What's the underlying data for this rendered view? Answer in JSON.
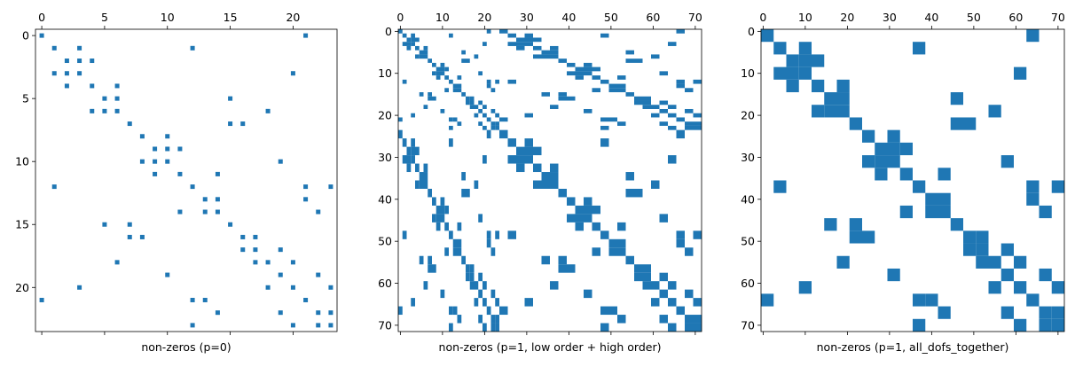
{
  "chart_data": [
    {
      "type": "spy",
      "xlabel": "non-zeros (p=0)",
      "xlim": [
        -0.5,
        23.5
      ],
      "ylim": [
        23.5,
        -0.5
      ],
      "xticks": [
        0,
        5,
        10,
        15,
        20
      ],
      "yticks": [
        0,
        5,
        10,
        15,
        20
      ],
      "series": [
        {
          "color": "#1f77b4",
          "cell_size": [
            1,
            1
          ],
          "x": [
            0,
            21,
            1,
            3,
            12,
            2,
            3,
            4,
            1,
            2,
            3,
            20,
            2,
            4,
            6,
            5,
            6,
            15,
            4,
            5,
            6,
            18,
            7,
            15,
            16,
            8,
            10,
            9,
            10,
            11,
            8,
            9,
            10,
            19,
            9,
            11,
            14,
            1,
            12,
            21,
            23,
            13,
            14,
            21,
            11,
            13,
            14,
            22,
            5,
            7,
            15,
            7,
            8,
            16,
            17,
            16,
            17,
            19,
            6,
            17,
            18,
            20,
            10,
            19,
            22,
            3,
            18,
            20,
            23,
            0,
            12,
            13,
            21,
            14,
            19,
            22,
            23,
            12,
            20,
            22,
            23
          ],
          "values": [
            0,
            0,
            1,
            1,
            1,
            2,
            2,
            2,
            3,
            3,
            3,
            3,
            4,
            4,
            4,
            5,
            5,
            5,
            6,
            6,
            6,
            6,
            7,
            7,
            7,
            8,
            8,
            9,
            9,
            9,
            10,
            10,
            10,
            10,
            11,
            11,
            11,
            12,
            12,
            12,
            12,
            13,
            13,
            13,
            14,
            14,
            14,
            14,
            15,
            15,
            15,
            16,
            16,
            16,
            16,
            17,
            17,
            17,
            18,
            18,
            18,
            18,
            19,
            19,
            19,
            20,
            20,
            20,
            20,
            21,
            21,
            21,
            21,
            22,
            22,
            22,
            22,
            23,
            23,
            23,
            23
          ]
        }
      ]
    },
    {
      "type": "spy",
      "xlabel": "non-zeros (p=1, low order + high order)",
      "xlim": [
        -0.5,
        71.5
      ],
      "ylim": [
        71.5,
        -0.5
      ],
      "xticks": [
        0,
        10,
        20,
        30,
        40,
        50,
        60,
        70
      ],
      "yticks": [
        0,
        10,
        20,
        30,
        40,
        50,
        60,
        70
      ],
      "series": [
        {
          "color": "#1f77b4",
          "cell_size": [
            1,
            1
          ],
          "x": [
            0,
            21,
            1,
            3,
            12,
            2,
            3,
            4,
            1,
            2,
            3,
            20,
            2,
            4,
            6,
            5,
            6,
            15,
            4,
            5,
            6,
            18,
            7,
            15,
            16,
            8,
            10,
            9,
            10,
            11,
            8,
            9,
            10,
            19,
            9,
            11,
            14,
            1,
            12,
            21,
            23,
            13,
            14,
            21,
            11,
            13,
            14,
            22,
            5,
            7,
            15,
            7,
            8,
            16,
            17,
            16,
            17,
            19,
            6,
            17,
            18,
            20,
            10,
            19,
            22,
            3,
            18,
            20,
            23,
            0,
            12,
            13,
            21,
            14,
            19,
            22,
            23,
            12,
            20,
            22,
            23
          ],
          "values": [
            0,
            0,
            1,
            1,
            1,
            2,
            2,
            2,
            3,
            3,
            3,
            3,
            4,
            4,
            4,
            5,
            5,
            5,
            6,
            6,
            6,
            6,
            7,
            7,
            7,
            8,
            8,
            9,
            9,
            9,
            10,
            10,
            10,
            10,
            11,
            11,
            11,
            12,
            12,
            12,
            12,
            13,
            13,
            13,
            14,
            14,
            14,
            14,
            15,
            15,
            15,
            16,
            16,
            16,
            16,
            17,
            17,
            17,
            18,
            18,
            18,
            18,
            19,
            19,
            19,
            20,
            20,
            20,
            20,
            21,
            21,
            21,
            21,
            22,
            22,
            22,
            22,
            23,
            23,
            23,
            23
          ]
        },
        {
          "color": "#1f77b4",
          "cell_size": [
            2,
            1
          ],
          "x": [
            24,
            66,
            26,
            30,
            48,
            28,
            30,
            32,
            26,
            28,
            30,
            64,
            28,
            32,
            36,
            34,
            36,
            54,
            32,
            34,
            36,
            60,
            38,
            54,
            56,
            40,
            44,
            42,
            44,
            46,
            40,
            42,
            44,
            62,
            42,
            46,
            52,
            26,
            48,
            66,
            70,
            50,
            52,
            66,
            46,
            50,
            52,
            68,
            34,
            38,
            54,
            38,
            40,
            56,
            58,
            56,
            58,
            62,
            36,
            58,
            60,
            64,
            44,
            62,
            68,
            30,
            60,
            64,
            70,
            24,
            48,
            50,
            66,
            52,
            62,
            68,
            70,
            48,
            64,
            68,
            70
          ],
          "values": [
            0,
            0,
            1,
            1,
            1,
            2,
            2,
            2,
            3,
            3,
            3,
            3,
            4,
            4,
            4,
            5,
            5,
            5,
            6,
            6,
            6,
            6,
            7,
            7,
            7,
            8,
            8,
            9,
            9,
            9,
            10,
            10,
            10,
            10,
            11,
            11,
            11,
            12,
            12,
            12,
            12,
            13,
            13,
            13,
            14,
            14,
            14,
            14,
            15,
            15,
            15,
            16,
            16,
            16,
            16,
            17,
            17,
            17,
            18,
            18,
            18,
            18,
            19,
            19,
            19,
            20,
            20,
            20,
            20,
            21,
            21,
            21,
            21,
            22,
            22,
            22,
            22,
            23,
            23,
            23,
            23
          ]
        },
        {
          "color": "#1f77b4",
          "cell_size": [
            1,
            2
          ],
          "x": [
            0,
            21,
            1,
            3,
            12,
            2,
            3,
            4,
            1,
            2,
            3,
            20,
            2,
            4,
            6,
            5,
            6,
            15,
            4,
            5,
            6,
            18,
            7,
            15,
            16,
            8,
            10,
            9,
            10,
            11,
            8,
            9,
            10,
            19,
            9,
            11,
            14,
            1,
            12,
            21,
            23,
            13,
            14,
            21,
            11,
            13,
            14,
            22,
            5,
            7,
            15,
            7,
            8,
            16,
            17,
            16,
            17,
            19,
            6,
            17,
            18,
            20,
            10,
            19,
            22,
            3,
            18,
            20,
            23,
            0,
            12,
            13,
            21,
            14,
            19,
            22,
            23,
            12,
            20,
            22,
            23
          ],
          "values": [
            24,
            24,
            26,
            26,
            26,
            28,
            28,
            28,
            30,
            30,
            30,
            30,
            32,
            32,
            32,
            34,
            34,
            34,
            36,
            36,
            36,
            36,
            38,
            38,
            38,
            40,
            40,
            42,
            42,
            42,
            44,
            44,
            44,
            44,
            46,
            46,
            46,
            48,
            48,
            48,
            48,
            50,
            50,
            50,
            52,
            52,
            52,
            52,
            54,
            54,
            54,
            56,
            56,
            56,
            56,
            58,
            58,
            58,
            60,
            60,
            60,
            60,
            62,
            62,
            62,
            64,
            64,
            64,
            64,
            66,
            66,
            66,
            66,
            68,
            68,
            68,
            68,
            70,
            70,
            70,
            70
          ]
        },
        {
          "color": "#1f77b4",
          "cell_size": [
            2,
            2
          ],
          "x": [
            24,
            66,
            26,
            30,
            48,
            28,
            30,
            32,
            26,
            28,
            30,
            64,
            28,
            32,
            36,
            34,
            36,
            54,
            32,
            34,
            36,
            60,
            38,
            54,
            56,
            40,
            44,
            42,
            44,
            46,
            40,
            42,
            44,
            62,
            42,
            46,
            52,
            26,
            48,
            66,
            70,
            50,
            52,
            66,
            46,
            50,
            52,
            68,
            34,
            38,
            54,
            38,
            40,
            56,
            58,
            56,
            58,
            62,
            36,
            58,
            60,
            64,
            44,
            62,
            68,
            30,
            60,
            64,
            70,
            24,
            48,
            50,
            66,
            52,
            62,
            68,
            70,
            48,
            64,
            68,
            70
          ],
          "values": [
            24,
            24,
            26,
            26,
            26,
            28,
            28,
            28,
            30,
            30,
            30,
            30,
            32,
            32,
            32,
            34,
            34,
            34,
            36,
            36,
            36,
            36,
            38,
            38,
            38,
            40,
            40,
            42,
            42,
            42,
            44,
            44,
            44,
            44,
            46,
            46,
            46,
            48,
            48,
            48,
            48,
            50,
            50,
            50,
            52,
            52,
            52,
            52,
            54,
            54,
            54,
            56,
            56,
            56,
            56,
            58,
            58,
            58,
            60,
            60,
            60,
            60,
            62,
            62,
            62,
            64,
            64,
            64,
            64,
            66,
            66,
            66,
            66,
            68,
            68,
            68,
            68,
            70,
            70,
            70,
            70
          ]
        }
      ]
    },
    {
      "type": "spy",
      "xlabel": "non-zeros (p=1, all_dofs_together)",
      "xlim": [
        -0.5,
        71.5
      ],
      "ylim": [
        71.5,
        -0.5
      ],
      "xticks": [
        0,
        10,
        20,
        30,
        40,
        50,
        60,
        70
      ],
      "yticks": [
        0,
        10,
        20,
        30,
        40,
        50,
        60,
        70
      ],
      "series": [
        {
          "color": "#1f77b4",
          "cell_size": [
            3,
            3
          ],
          "x": [
            0,
            63,
            3,
            9,
            36,
            6,
            9,
            12,
            3,
            6,
            9,
            60,
            6,
            12,
            18,
            15,
            18,
            45,
            12,
            15,
            18,
            54,
            21,
            45,
            48,
            24,
            30,
            27,
            30,
            33,
            24,
            27,
            30,
            57,
            27,
            33,
            42,
            3,
            36,
            63,
            69,
            39,
            42,
            63,
            33,
            39,
            42,
            66,
            15,
            21,
            45,
            21,
            24,
            48,
            51,
            48,
            51,
            57,
            18,
            51,
            54,
            60,
            30,
            57,
            66,
            9,
            54,
            60,
            69,
            0,
            36,
            39,
            63,
            42,
            57,
            66,
            69,
            36,
            60,
            66,
            69
          ],
          "values": [
            0,
            0,
            3,
            3,
            3,
            6,
            6,
            6,
            9,
            9,
            9,
            9,
            12,
            12,
            12,
            15,
            15,
            15,
            18,
            18,
            18,
            18,
            21,
            21,
            21,
            24,
            24,
            27,
            27,
            27,
            30,
            30,
            30,
            30,
            33,
            33,
            33,
            36,
            36,
            36,
            36,
            39,
            39,
            39,
            42,
            42,
            42,
            42,
            45,
            45,
            45,
            48,
            48,
            48,
            48,
            51,
            51,
            51,
            54,
            54,
            54,
            54,
            57,
            57,
            57,
            60,
            60,
            60,
            60,
            63,
            63,
            63,
            63,
            66,
            66,
            66,
            66,
            69,
            69,
            69,
            69
          ]
        }
      ]
    }
  ]
}
